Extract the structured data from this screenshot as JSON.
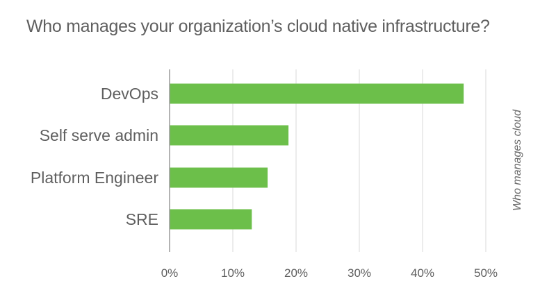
{
  "chart_data": {
    "type": "bar",
    "orientation": "horizontal",
    "title": "Who manages your organization’s cloud native infrastructure?",
    "categories": [
      "DevOps",
      "Self serve admin",
      "Platform Engineer",
      "SRE"
    ],
    "values": [
      46.5,
      18.8,
      15.5,
      13.0
    ],
    "value_unit": "%",
    "xlim": [
      0,
      50
    ],
    "xticks": [
      "0%",
      "10%",
      "20%",
      "30%",
      "40%",
      "50%"
    ],
    "ylabel_right": "Who manages cloud",
    "grid": "vertical",
    "bar_color": "#6cbf4a"
  }
}
